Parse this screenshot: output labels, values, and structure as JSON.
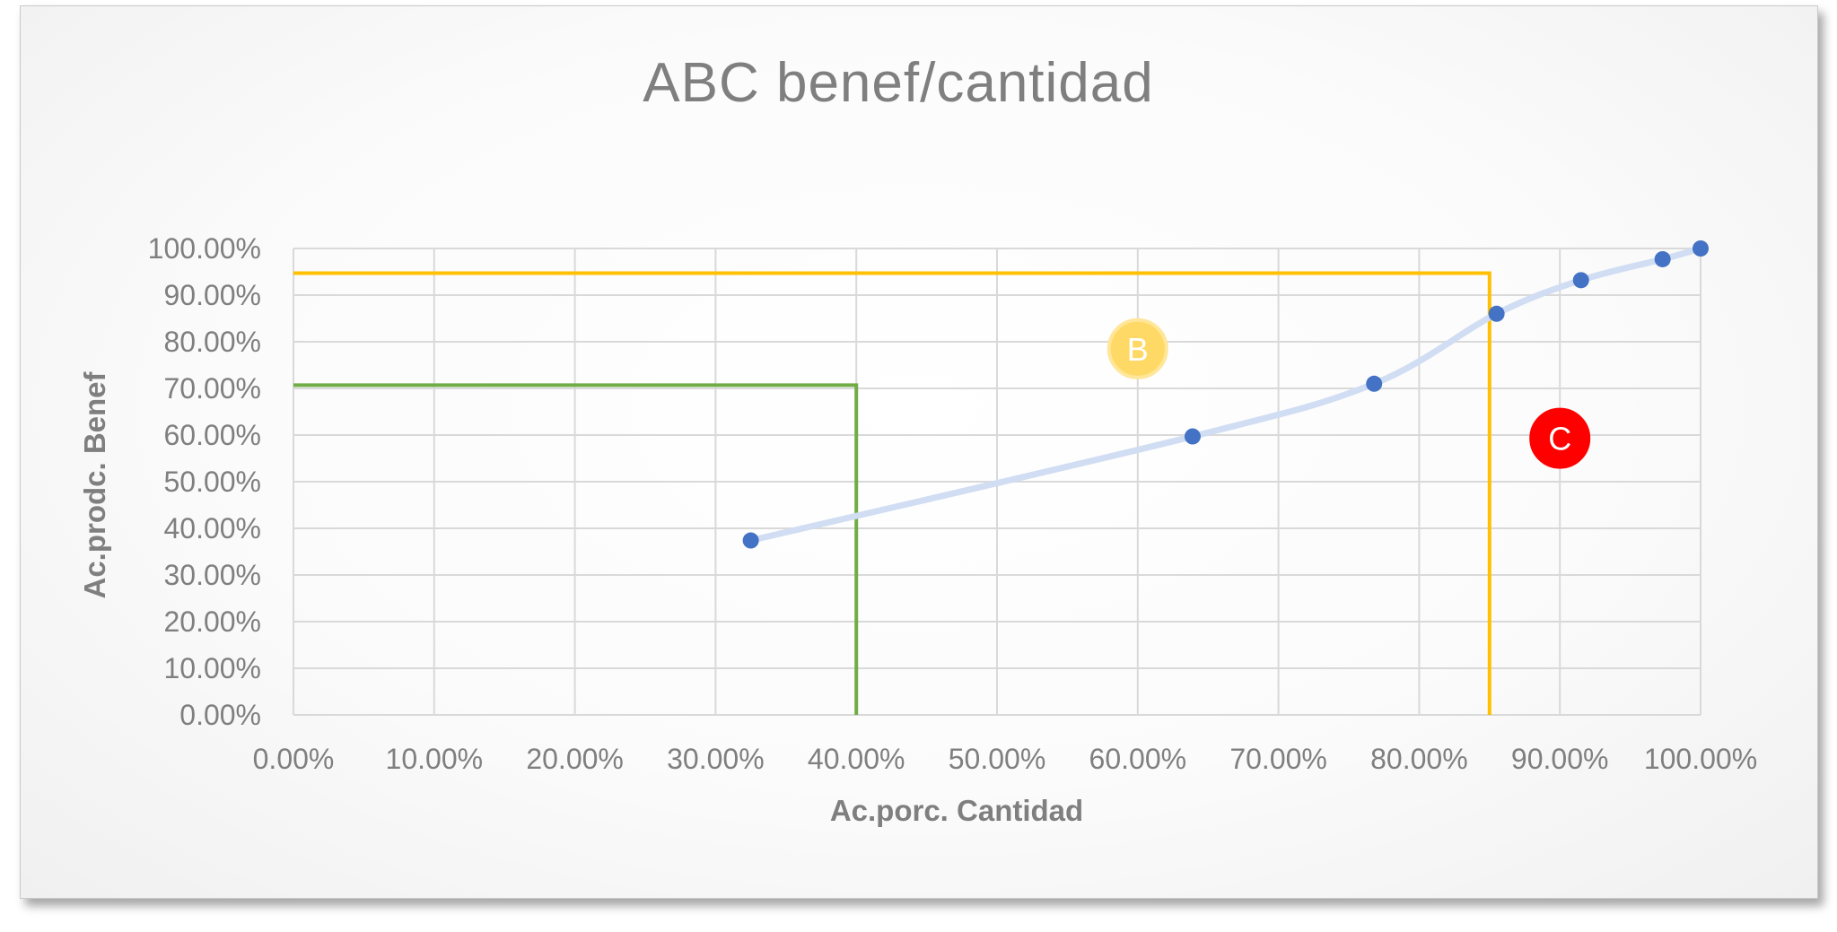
{
  "chart_data": {
    "type": "scatter",
    "title": "ABC benef/cantidad",
    "xlabel": "Ac.porc. Cantidad",
    "ylabel": "Ac.prodc. Benef",
    "xlim": [
      0,
      1
    ],
    "ylim": [
      0,
      1
    ],
    "x_ticks": [
      "0.00%",
      "10.00%",
      "20.00%",
      "30.00%",
      "40.00%",
      "50.00%",
      "60.00%",
      "70.00%",
      "80.00%",
      "90.00%",
      "100.00%"
    ],
    "y_ticks": [
      "0.00%",
      "10.00%",
      "20.00%",
      "30.00%",
      "40.00%",
      "50.00%",
      "60.00%",
      "70.00%",
      "80.00%",
      "90.00%",
      "100.00%"
    ],
    "grid": true,
    "series": [
      {
        "x": [
          0.325,
          0.639,
          0.768,
          0.855,
          0.915,
          0.973,
          1.0
        ],
        "y": [
          0.374,
          0.597,
          0.71,
          0.86,
          0.932,
          0.977,
          1.0
        ],
        "color": "#4472c4",
        "line_color": "#d0ddf2"
      }
    ],
    "reference_lines": [
      {
        "color": "#70ad47",
        "x": 0.4,
        "y": 0.707
      },
      {
        "color": "#ffc000",
        "x": 0.85,
        "y": 0.947
      }
    ],
    "annotations": [
      {
        "text": "B",
        "x": 0.6,
        "y": 0.785,
        "fill": "#ffd966",
        "stroke": "#ffe699"
      },
      {
        "text": "C",
        "x": 0.9,
        "y": 0.593,
        "fill": "#ff0000",
        "stroke": "#ff0000"
      }
    ]
  }
}
